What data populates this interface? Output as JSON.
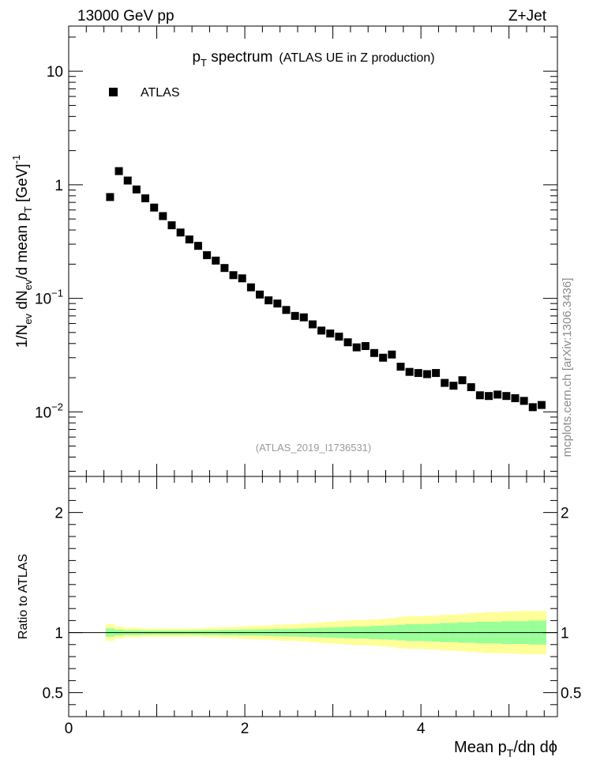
{
  "header": {
    "left": "13000 GeV pp",
    "right": "Z+Jet"
  },
  "side_label": "mcplots.cern.ch [arXiv:1306.3436]",
  "chart_data": [
    {
      "type": "scatter",
      "title": "p",
      "title_sub": "T",
      "title_rest": " spectrum",
      "subtitle": "(ATLAS UE in Z production)",
      "analysis_label": "(ATLAS_2019_I1736531)",
      "ylabel": {
        "p1": "1/N",
        "s1": "ev",
        "p2": " dN",
        "s2": "ev",
        "p3": "/d mean p",
        "s3": "T",
        "p4": " [GeV]",
        "sup": "-1"
      },
      "yscale": "log",
      "ylim": [
        0.0027,
        25
      ],
      "xlim": [
        0,
        5.55
      ],
      "yticks": [
        {
          "value": 10,
          "label": "10"
        },
        {
          "value": 1,
          "label": "1"
        },
        {
          "value": 0.1,
          "label": "10",
          "exp": "−1"
        },
        {
          "value": 0.01,
          "label": "10",
          "exp": "−2"
        }
      ],
      "legend": [
        {
          "name": "ATLAS",
          "marker": "square",
          "color": "#000000"
        }
      ],
      "series": [
        {
          "name": "ATLAS",
          "x": [
            0.47,
            0.57,
            0.67,
            0.77,
            0.87,
            0.97,
            1.07,
            1.17,
            1.27,
            1.37,
            1.47,
            1.57,
            1.67,
            1.77,
            1.87,
            1.97,
            2.07,
            2.17,
            2.27,
            2.37,
            2.47,
            2.57,
            2.67,
            2.77,
            2.87,
            2.97,
            3.07,
            3.17,
            3.27,
            3.37,
            3.47,
            3.57,
            3.67,
            3.77,
            3.87,
            3.97,
            4.07,
            4.17,
            4.27,
            4.37,
            4.47,
            4.57,
            4.67,
            4.77,
            4.87,
            4.97,
            5.07,
            5.17,
            5.27,
            5.37
          ],
          "y": [
            0.78,
            1.32,
            1.09,
            0.91,
            0.76,
            0.63,
            0.53,
            0.44,
            0.38,
            0.33,
            0.29,
            0.24,
            0.215,
            0.185,
            0.16,
            0.15,
            0.125,
            0.108,
            0.096,
            0.09,
            0.079,
            0.07,
            0.068,
            0.059,
            0.052,
            0.049,
            0.046,
            0.041,
            0.037,
            0.038,
            0.033,
            0.03,
            0.032,
            0.025,
            0.0225,
            0.022,
            0.0215,
            0.022,
            0.018,
            0.017,
            0.019,
            0.0165,
            0.014,
            0.0138,
            0.0142,
            0.0138,
            0.0132,
            0.0125,
            0.011,
            0.0115
          ]
        }
      ]
    },
    {
      "type": "area",
      "ylabel": "Ratio to ATLAS",
      "xlabel": {
        "p1": "Mean p",
        "s1": "T",
        "p2": "/dη dϕ"
      },
      "ylim": [
        0.3,
        2.3
      ],
      "xlim": [
        0,
        5.55
      ],
      "yticks": [
        {
          "value": 2,
          "label": "2"
        },
        {
          "value": 1,
          "label": "1"
        },
        {
          "value": 0.5,
          "label": "0.5"
        }
      ],
      "xticks": [
        {
          "value": 0,
          "label": "0"
        },
        {
          "value": 2,
          "label": "2"
        },
        {
          "value": 4,
          "label": "4"
        }
      ],
      "reference_line": 1,
      "band_colors": {
        "inner": "#99ff99",
        "outer": "#ffff99"
      },
      "bins": [
        0.42,
        0.52,
        0.62,
        0.72,
        0.82,
        0.92,
        1.02,
        1.12,
        1.22,
        1.32,
        1.42,
        1.52,
        1.62,
        1.72,
        1.82,
        1.92,
        2.02,
        2.12,
        2.22,
        2.32,
        2.42,
        2.52,
        2.62,
        2.72,
        2.82,
        2.92,
        3.02,
        3.12,
        3.22,
        3.32,
        3.42,
        3.52,
        3.62,
        3.72,
        3.82,
        3.92,
        4.02,
        4.12,
        4.22,
        4.32,
        4.42,
        4.52,
        4.62,
        4.72,
        4.82,
        4.92,
        5.02,
        5.12,
        5.22,
        5.32,
        5.42
      ],
      "inner_err": [
        0.035,
        0.025,
        0.02,
        0.02,
        0.018,
        0.018,
        0.018,
        0.018,
        0.018,
        0.018,
        0.018,
        0.02,
        0.02,
        0.022,
        0.022,
        0.025,
        0.025,
        0.027,
        0.028,
        0.03,
        0.032,
        0.033,
        0.035,
        0.038,
        0.04,
        0.042,
        0.045,
        0.048,
        0.05,
        0.05,
        0.055,
        0.058,
        0.06,
        0.065,
        0.07,
        0.07,
        0.072,
        0.075,
        0.08,
        0.08,
        0.085,
        0.085,
        0.09,
        0.09,
        0.09,
        0.095,
        0.095,
        0.095,
        0.1,
        0.1
      ],
      "outer_err": [
        0.07,
        0.05,
        0.04,
        0.04,
        0.035,
        0.035,
        0.035,
        0.035,
        0.035,
        0.035,
        0.036,
        0.04,
        0.042,
        0.045,
        0.048,
        0.05,
        0.055,
        0.058,
        0.06,
        0.065,
        0.068,
        0.07,
        0.075,
        0.08,
        0.085,
        0.09,
        0.095,
        0.1,
        0.105,
        0.105,
        0.11,
        0.115,
        0.12,
        0.13,
        0.135,
        0.135,
        0.14,
        0.14,
        0.15,
        0.15,
        0.155,
        0.16,
        0.165,
        0.17,
        0.17,
        0.175,
        0.175,
        0.18,
        0.18,
        0.18
      ]
    }
  ]
}
